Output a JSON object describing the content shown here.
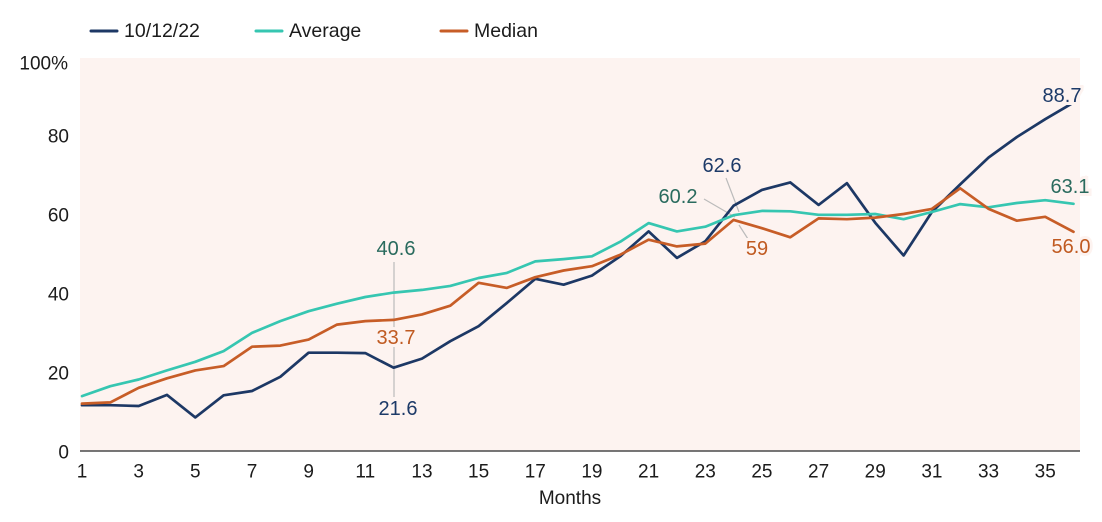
{
  "chart_data": {
    "type": "line",
    "title": "",
    "xlabel": "Months",
    "ylabel": "",
    "xlim": [
      1,
      36
    ],
    "ylim": [
      0,
      100
    ],
    "grid": false,
    "legend_position": "top-left",
    "plot_background": "#fdf3f0",
    "page_background": "#ffffff",
    "axis_color": "#4a4a4a",
    "tick_text_color": "#1c1c1c",
    "leader_line_color": "#bbbbbb",
    "x_ticks": [
      1,
      3,
      5,
      7,
      9,
      11,
      13,
      15,
      17,
      19,
      21,
      23,
      25,
      27,
      29,
      31,
      33,
      35
    ],
    "y_ticks": [
      0,
      20,
      40,
      60,
      80
    ],
    "y_top_tick_label": "100%",
    "x": [
      1,
      2,
      3,
      4,
      5,
      6,
      7,
      8,
      9,
      10,
      11,
      12,
      13,
      14,
      15,
      16,
      17,
      18,
      19,
      20,
      21,
      22,
      23,
      24,
      25,
      26,
      27,
      28,
      29,
      30,
      31,
      32,
      33,
      34,
      35,
      36
    ],
    "series": [
      {
        "name": "10/12/22",
        "color": "#1d3865",
        "label_color": "#1d3a68",
        "values": [
          12.1,
          12.1,
          11.9,
          14.7,
          9.0,
          14.6,
          15.7,
          19.3,
          25.4,
          25.4,
          25.3,
          21.6,
          23.9,
          28.3,
          32.1,
          38.0,
          44.1,
          42.6,
          44.9,
          49.8,
          56.1,
          49.4,
          53.6,
          62.6,
          66.6,
          68.5,
          62.8,
          68.3,
          58.3,
          50.0,
          61.0,
          68.0,
          74.8,
          80.0,
          84.5,
          88.7
        ]
      },
      {
        "name": "Average",
        "color": "#36c6b1",
        "label_color": "#2a6b5e",
        "values": [
          14.4,
          16.9,
          18.6,
          20.9,
          23.1,
          25.8,
          30.4,
          33.4,
          35.9,
          37.8,
          39.5,
          40.6,
          41.3,
          42.3,
          44.3,
          45.6,
          48.5,
          49.1,
          49.8,
          53.5,
          58.2,
          56.1,
          57.3,
          60.2,
          61.3,
          61.2,
          60.3,
          60.3,
          60.5,
          59.2,
          61.0,
          63.0,
          62.2,
          63.3,
          64.0,
          63.1
        ]
      },
      {
        "name": "Median",
        "color": "#c75d27",
        "label_color": "#c05a21",
        "values": [
          12.5,
          12.8,
          16.5,
          18.9,
          20.9,
          22.0,
          26.9,
          27.2,
          28.7,
          32.5,
          33.4,
          33.7,
          35.1,
          37.3,
          43.1,
          41.8,
          44.5,
          46.2,
          47.3,
          50.2,
          54.0,
          52.3,
          53.0,
          59.0,
          56.9,
          54.6,
          59.4,
          59.2,
          59.6,
          60.5,
          61.8,
          67.0,
          61.8,
          58.8,
          59.8,
          56.0
        ]
      }
    ],
    "annotations": [
      {
        "series": "Average",
        "month": 12,
        "text": "40.6"
      },
      {
        "series": "Median",
        "month": 12,
        "text": "33.7"
      },
      {
        "series": "10/12/22",
        "month": 12,
        "text": "21.6"
      },
      {
        "series": "10/12/22",
        "month": 24,
        "text": "62.6"
      },
      {
        "series": "Average",
        "month": 24,
        "text": "60.2"
      },
      {
        "series": "Median",
        "month": 24,
        "text": "59"
      },
      {
        "series": "10/12/22",
        "month": 36,
        "text": "88.7"
      },
      {
        "series": "Average",
        "month": 36,
        "text": "63.1"
      },
      {
        "series": "Median",
        "month": 36,
        "text": "56.0"
      }
    ]
  },
  "legend": {
    "items": [
      {
        "label": "10/12/22",
        "color": "#1d3865"
      },
      {
        "label": "Average",
        "color": "#36c6b1"
      },
      {
        "label": "Median",
        "color": "#c75d27"
      }
    ]
  }
}
